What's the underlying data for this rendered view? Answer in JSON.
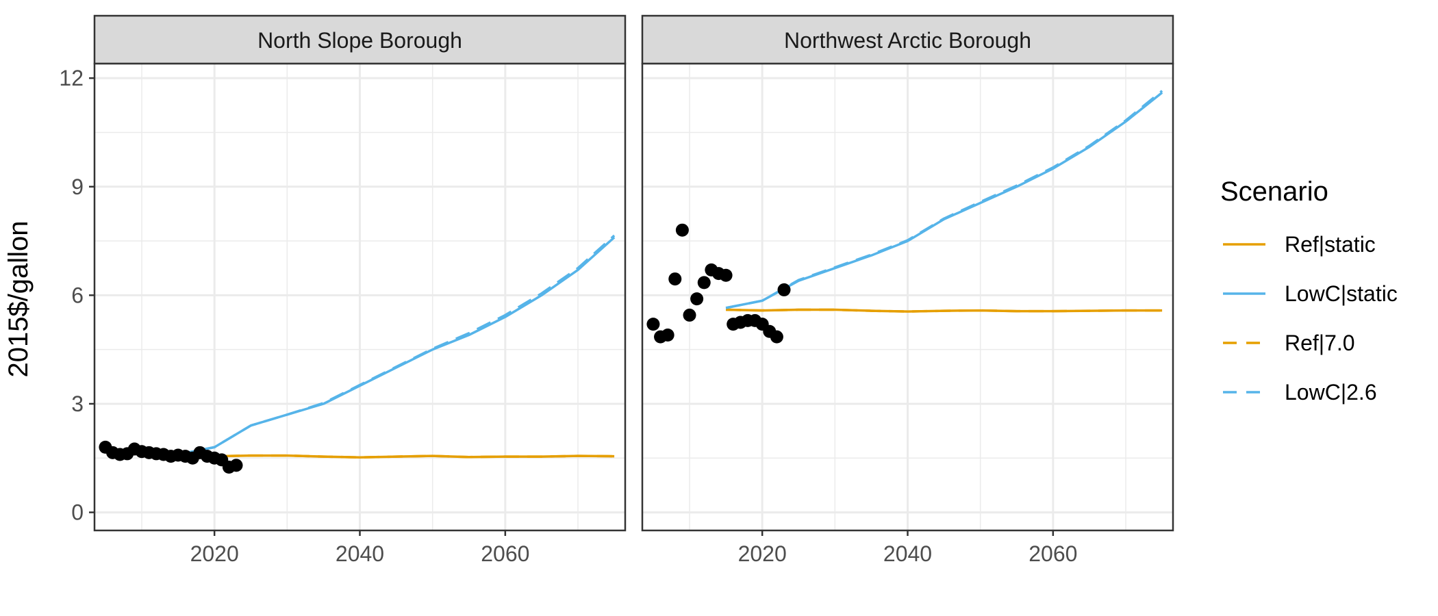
{
  "chart_data": {
    "type": "line",
    "ylabel": "2015$/gallon",
    "ylim": [
      -0.5,
      12.4
    ],
    "yticks": [
      0,
      3,
      6,
      9,
      12
    ],
    "xlim": [
      2003.5,
      2076.5
    ],
    "xticks": [
      2020,
      2040,
      2060
    ],
    "grid": true,
    "legend": {
      "title": "Scenario",
      "placement": "right",
      "entries": [
        {
          "label": "Ref|static",
          "color": "#E69F00",
          "dash": "solid"
        },
        {
          "label": "LowC|static",
          "color": "#56B4E9",
          "dash": "solid"
        },
        {
          "label": "Ref|7.0",
          "color": "#E69F00",
          "dash": "dashed"
        },
        {
          "label": "LowC|2.6",
          "color": "#56B4E9",
          "dash": "dashed"
        }
      ]
    },
    "panels": [
      {
        "title": "North Slope Borough",
        "observed": {
          "x": [
            2005,
            2006,
            2007,
            2008,
            2009,
            2010,
            2011,
            2012,
            2013,
            2014,
            2015,
            2016,
            2017,
            2018,
            2019,
            2020,
            2021,
            2022,
            2023
          ],
          "y": [
            1.8,
            1.65,
            1.6,
            1.62,
            1.75,
            1.68,
            1.65,
            1.62,
            1.6,
            1.55,
            1.58,
            1.55,
            1.5,
            1.65,
            1.55,
            1.5,
            1.45,
            1.25,
            1.3
          ]
        },
        "series": [
          {
            "name": "Ref|static",
            "x": [
              2015,
              2020,
              2025,
              2030,
              2035,
              2040,
              2045,
              2050,
              2055,
              2060,
              2065,
              2070,
              2075
            ],
            "y": [
              1.6,
              1.55,
              1.57,
              1.57,
              1.54,
              1.52,
              1.54,
              1.56,
              1.53,
              1.54,
              1.54,
              1.56,
              1.55
            ]
          },
          {
            "name": "LowC|static",
            "x": [
              2015,
              2020,
              2025,
              2030,
              2035,
              2040,
              2045,
              2050,
              2055,
              2060,
              2065,
              2070,
              2075
            ],
            "y": [
              1.6,
              1.8,
              2.4,
              2.7,
              3.0,
              3.5,
              4.0,
              4.5,
              4.9,
              5.4,
              6.0,
              6.7,
              7.6
            ]
          },
          {
            "name": "Ref|7.0",
            "x": [
              2015,
              2020,
              2025,
              2030,
              2035,
              2040,
              2045,
              2050,
              2055,
              2060,
              2065,
              2070,
              2075
            ],
            "y": [
              1.6,
              1.55,
              1.57,
              1.57,
              1.54,
              1.52,
              1.54,
              1.56,
              1.53,
              1.54,
              1.54,
              1.56,
              1.55
            ]
          },
          {
            "name": "LowC|2.6",
            "x": [
              2015,
              2020,
              2025,
              2030,
              2035,
              2040,
              2045,
              2050,
              2055,
              2060,
              2065,
              2070,
              2075
            ],
            "y": [
              1.6,
              1.8,
              2.4,
              2.7,
              3.02,
              3.52,
              4.02,
              4.52,
              4.95,
              5.45,
              6.05,
              6.75,
              7.65
            ]
          }
        ]
      },
      {
        "title": "Northwest Arctic Borough",
        "observed": {
          "x": [
            2005,
            2006,
            2007,
            2008,
            2009,
            2010,
            2011,
            2012,
            2013,
            2014,
            2015,
            2016,
            2017,
            2018,
            2019,
            2020,
            2021,
            2022,
            2023
          ],
          "y": [
            5.2,
            4.85,
            4.9,
            6.45,
            7.8,
            5.45,
            5.9,
            6.35,
            6.7,
            6.6,
            6.55,
            5.2,
            5.25,
            5.3,
            5.3,
            5.2,
            5.0,
            4.85,
            6.15
          ]
        },
        "series": [
          {
            "name": "Ref|static",
            "x": [
              2015,
              2020,
              2025,
              2030,
              2035,
              2040,
              2045,
              2050,
              2055,
              2060,
              2065,
              2070,
              2075
            ],
            "y": [
              5.6,
              5.58,
              5.6,
              5.6,
              5.57,
              5.55,
              5.57,
              5.58,
              5.56,
              5.56,
              5.57,
              5.58,
              5.58
            ]
          },
          {
            "name": "LowC|static",
            "x": [
              2015,
              2020,
              2025,
              2030,
              2035,
              2040,
              2045,
              2050,
              2055,
              2060,
              2065,
              2070,
              2075
            ],
            "y": [
              5.65,
              5.85,
              6.4,
              6.75,
              7.1,
              7.5,
              8.1,
              8.55,
              9.0,
              9.5,
              10.1,
              10.8,
              11.6
            ]
          },
          {
            "name": "Ref|7.0",
            "x": [
              2015,
              2020,
              2025,
              2030,
              2035,
              2040,
              2045,
              2050,
              2055,
              2060,
              2065,
              2070,
              2075
            ],
            "y": [
              5.6,
              5.58,
              5.6,
              5.6,
              5.57,
              5.55,
              5.57,
              5.58,
              5.56,
              5.56,
              5.57,
              5.58,
              5.58
            ]
          },
          {
            "name": "LowC|2.6",
            "x": [
              2015,
              2020,
              2025,
              2030,
              2035,
              2040,
              2045,
              2050,
              2055,
              2060,
              2065,
              2070,
              2075
            ],
            "y": [
              5.65,
              5.85,
              6.42,
              6.77,
              7.12,
              7.52,
              8.12,
              8.58,
              9.03,
              9.53,
              10.13,
              10.83,
              11.65
            ]
          }
        ]
      }
    ]
  }
}
